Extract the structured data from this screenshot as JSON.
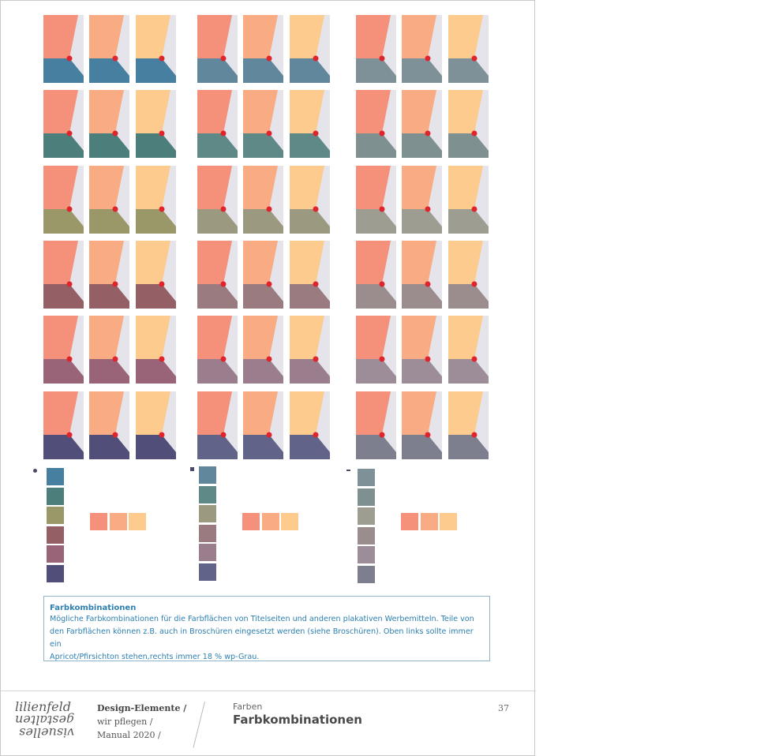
{
  "colors": {
    "tops": [
      "#f5917a",
      "#f9ac83",
      "#fdcb8e"
    ],
    "grey_bg": "#e4e4ea",
    "dot": "#e0242c",
    "bottoms": [
      [
        "#467f9f",
        "#60879b",
        "#7e9098"
      ],
      [
        "#4c7e7b",
        "#5f8987",
        "#7e908f"
      ],
      [
        "#9a9769",
        "#9b9a80",
        "#9d9d92"
      ],
      [
        "#955f66",
        "#9a7c80",
        "#9b8c8e"
      ],
      [
        "#996478",
        "#9a7e8e",
        "#9d8d98"
      ],
      [
        "#514f79",
        "#626388",
        "#7d7f8f"
      ]
    ]
  },
  "info": {
    "title": "Farbkombinationen",
    "line1": "Mögliche Farbkombinationen für die Farbflächen von Titelseiten und anderen plakativen Werbemitteln. Teile von",
    "line2": "den Farbflächen können z.B. auch in Broschüren eingesetzt werden (siehe Broschüren). Oben links sollte immer ein",
    "line3": "Apricot/Pfirsichton stehen,rechts immer 18 % wp-Grau."
  },
  "footer": {
    "logo_top": "lilienfeld",
    "logo_mid": "gestalten",
    "logo_bot": "visuelles",
    "meta1": "Design-Elemente /",
    "meta2": "wir pflegen /",
    "meta3": "Manual  2020 /",
    "section": "Farben",
    "title": "Farbkombinationen",
    "page_number": "37"
  }
}
